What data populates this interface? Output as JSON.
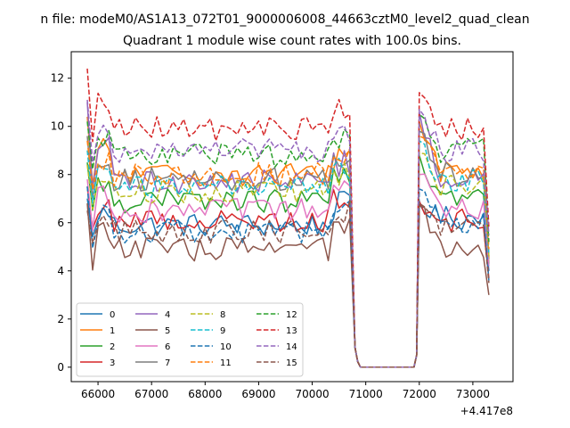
{
  "chart_data": {
    "type": "line",
    "suptitle": "n file: modeM0/AS1A13_072T01_9000006008_44663cztM0_level2_quad_clean",
    "title": "Quadrant 1 module wise count rates with 100.0s bins.",
    "xlabel": "",
    "ylabel": "",
    "x_offset_label": "+4.417e8",
    "xlim": [
      65500,
      73750
    ],
    "ylim": [
      -0.6,
      13.1
    ],
    "x_ticks": [
      66000,
      67000,
      68000,
      69000,
      70000,
      71000,
      72000,
      73000
    ],
    "x_tick_labels": [
      "66000",
      "67000",
      "68000",
      "69000",
      "70000",
      "71000",
      "72000",
      "73000"
    ],
    "y_ticks": [
      0,
      2,
      4,
      6,
      8,
      10,
      12
    ],
    "y_tick_labels": [
      "0",
      "2",
      "4",
      "6",
      "8",
      "10",
      "12"
    ],
    "grid": false,
    "legend_position": "lower-left",
    "segments": {
      "segment_1": {
        "x_start": 65800,
        "x_end": 70700
      },
      "gap": {
        "x_start": 70800,
        "x_end": 71900,
        "value": 0.0
      },
      "segment_2": {
        "x_start": 72000,
        "x_end": 73300
      }
    },
    "series": [
      {
        "name": "0",
        "color": "#1f77b4",
        "dash": "solid",
        "start": 7.0,
        "level_1": 5.9,
        "start_2": 6.8,
        "level_2": 6.2,
        "end": 4.0
      },
      {
        "name": "1",
        "color": "#ff7f0e",
        "dash": "solid",
        "start": 10.4,
        "level_1": 8.0,
        "start_2": 10.2,
        "level_2": 8.2,
        "end": 4.5
      },
      {
        "name": "2",
        "color": "#2ca02c",
        "dash": "solid",
        "start": 8.5,
        "level_1": 6.9,
        "start_2": 8.8,
        "level_2": 7.0,
        "end": 4.3
      },
      {
        "name": "3",
        "color": "#d62728",
        "dash": "solid",
        "start": 7.5,
        "level_1": 6.1,
        "start_2": 6.9,
        "level_2": 6.1,
        "end": 3.7
      },
      {
        "name": "4",
        "color": "#9467bd",
        "dash": "solid",
        "start": 11.0,
        "level_1": 7.7,
        "start_2": 10.6,
        "level_2": 7.8,
        "end": 4.6
      },
      {
        "name": "5",
        "color": "#8c564b",
        "dash": "solid",
        "start": 6.8,
        "level_1": 4.9,
        "start_2": 6.7,
        "level_2": 4.8,
        "end": 3.0
      },
      {
        "name": "6",
        "color": "#e377c2",
        "dash": "solid",
        "start": 7.8,
        "level_1": 6.5,
        "start_2": 8.0,
        "level_2": 6.6,
        "end": 4.2
      },
      {
        "name": "7",
        "color": "#7f7f7f",
        "dash": "solid",
        "start": 9.6,
        "level_1": 7.8,
        "start_2": 9.8,
        "level_2": 8.0,
        "end": 4.6
      },
      {
        "name": "8",
        "color": "#bcbd22",
        "dash": "dashed",
        "start": 8.4,
        "level_1": 7.3,
        "start_2": 8.9,
        "level_2": 7.5,
        "end": 4.6
      },
      {
        "name": "9",
        "color": "#17becf",
        "dash": "dashed",
        "start": 9.0,
        "level_1": 7.5,
        "start_2": 9.4,
        "level_2": 7.7,
        "end": 4.7
      },
      {
        "name": "10",
        "color": "#1f77b4",
        "dash": "dashed",
        "start": 7.5,
        "level_1": 5.6,
        "start_2": 7.4,
        "level_2": 6.0,
        "end": 3.6
      },
      {
        "name": "11",
        "color": "#ff7f0e",
        "dash": "dashed",
        "start": 9.4,
        "level_1": 8.0,
        "start_2": 9.6,
        "level_2": 8.3,
        "end": 4.9
      },
      {
        "name": "12",
        "color": "#2ca02c",
        "dash": "dashed",
        "start": 10.2,
        "level_1": 8.8,
        "start_2": 10.5,
        "level_2": 9.0,
        "end": 5.2
      },
      {
        "name": "13",
        "color": "#d62728",
        "dash": "dashed",
        "start": 12.4,
        "level_1": 9.9,
        "start_2": 11.4,
        "level_2": 9.9,
        "end": 5.8
      },
      {
        "name": "14",
        "color": "#9467bd",
        "dash": "dashed",
        "start": 11.1,
        "level_1": 9.0,
        "start_2": 10.7,
        "level_2": 9.0,
        "end": 5.5
      },
      {
        "name": "15",
        "color": "#8c564b",
        "dash": "dashed",
        "start": 6.5,
        "level_1": 5.6,
        "start_2": 6.8,
        "level_2": 5.8,
        "end": 3.5
      }
    ]
  }
}
